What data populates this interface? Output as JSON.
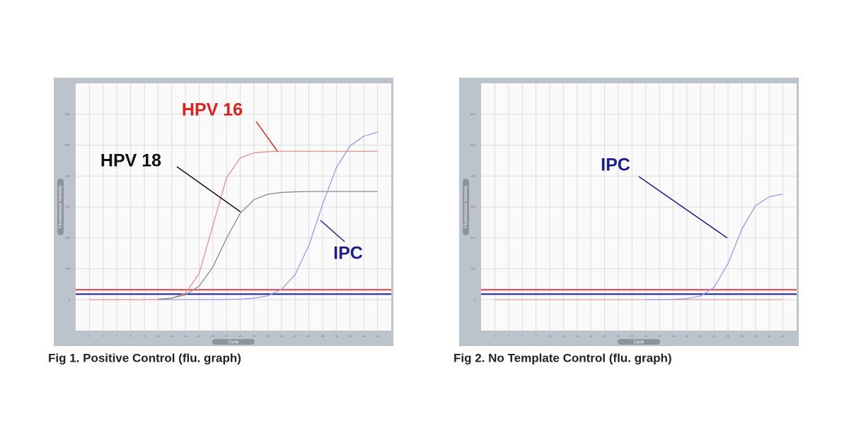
{
  "chart_data": [
    {
      "type": "line",
      "title": "Fig 1. Positive Control (flu. graph)",
      "xlabel": "Cycle",
      "ylabel": "Fluorescence Intensity",
      "x": [
        2,
        4,
        6,
        8,
        10,
        12,
        14,
        16,
        18,
        20,
        22,
        24,
        26,
        28,
        30,
        32,
        34,
        36,
        38,
        40,
        42,
        44
      ],
      "xlim": [
        0,
        46
      ],
      "ylim": [
        -10000,
        70000
      ],
      "xticks": [
        2,
        4,
        6,
        8,
        10,
        12,
        14,
        16,
        18,
        20,
        22,
        24,
        26,
        28,
        30,
        32,
        34,
        36,
        38,
        40,
        42,
        44
      ],
      "yticks": [
        0,
        {
          "value": 10000,
          "label": "10K"
        },
        {
          "value": 20000,
          "label": "20K"
        },
        {
          "value": 30000,
          "label": "30K"
        },
        {
          "value": 40000,
          "label": "40K"
        },
        {
          "value": 50000,
          "label": "50K"
        },
        {
          "value": 60000,
          "label": "60K"
        }
      ],
      "grid": true,
      "thresholds": [
        {
          "value": 3200,
          "color": "#e0404a"
        },
        {
          "value": 1800,
          "color": "#1a1a9a"
        }
      ],
      "series": [
        {
          "color": "#f28a8a",
          "values": [
            0,
            0,
            0,
            0,
            0,
            100,
            480,
            2100,
            8500,
            24000,
            39500,
            45900,
            47500,
            47900,
            48000,
            48000,
            48000,
            48000,
            48000,
            48000,
            48000,
            48000
          ]
        },
        {
          "color": "#8a8a8a",
          "values": [
            null,
            null,
            null,
            null,
            null,
            180,
            530,
            1570,
            4390,
            10600,
            19900,
            28000,
            32400,
            34100,
            34700,
            34900,
            35000,
            35000,
            35000,
            35000,
            35000,
            35000
          ]
        },
        {
          "color": "#9a9aec",
          "values": [
            null,
            null,
            null,
            null,
            null,
            0,
            0,
            0,
            10,
            20,
            60,
            180,
            470,
            1260,
            3310,
            8150,
            17600,
            30900,
            42700,
            49800,
            52900,
            54200
          ]
        }
      ],
      "annotations": [
        {
          "text": "HPV 16",
          "color": "#e0201c"
        },
        {
          "text": "HPV 18",
          "color": "#111111"
        },
        {
          "text": "IPC",
          "color": "#1c1c8c"
        }
      ]
    },
    {
      "type": "line",
      "title": "Fig 2. No Template Control (flu. graph)",
      "xlabel": "Cycle",
      "ylabel": "Fluorescence Intensity",
      "x": [
        2,
        4,
        6,
        8,
        10,
        12,
        14,
        16,
        18,
        20,
        22,
        24,
        26,
        28,
        30,
        32,
        34,
        36,
        38,
        40,
        42,
        44
      ],
      "xlim": [
        0,
        46
      ],
      "ylim": [
        -10000,
        70000
      ],
      "xticks": [
        2,
        4,
        6,
        8,
        10,
        12,
        14,
        16,
        18,
        20,
        22,
        24,
        26,
        28,
        30,
        32,
        34,
        36,
        38,
        40,
        42,
        44
      ],
      "yticks": [
        0,
        {
          "value": 10000,
          "label": "10K"
        },
        {
          "value": 20000,
          "label": "20K"
        },
        {
          "value": 30000,
          "label": "30K"
        },
        {
          "value": 40000,
          "label": "40K"
        },
        {
          "value": 50000,
          "label": "50K"
        },
        {
          "value": 60000,
          "label": "60K"
        }
      ],
      "grid": true,
      "thresholds": [
        {
          "value": 3200,
          "color": "#e0404a"
        },
        {
          "value": 1800,
          "color": "#1a1a9a"
        }
      ],
      "series": [
        {
          "color": "#f2a0a0",
          "values": [
            0,
            0,
            0,
            0,
            0,
            0,
            0,
            0,
            0,
            0,
            0,
            0,
            0,
            0,
            0,
            0,
            0,
            0,
            0,
            0,
            0,
            0
          ]
        },
        {
          "color": "#9a9aec",
          "values": [
            null,
            null,
            null,
            null,
            null,
            null,
            null,
            null,
            null,
            null,
            null,
            6,
            23,
            85,
            323,
            1190,
            4110,
            11700,
            22800,
            30400,
            33300,
            34200
          ]
        }
      ],
      "annotations": [
        {
          "text": "IPC",
          "color": "#1c1c8c"
        }
      ]
    }
  ]
}
